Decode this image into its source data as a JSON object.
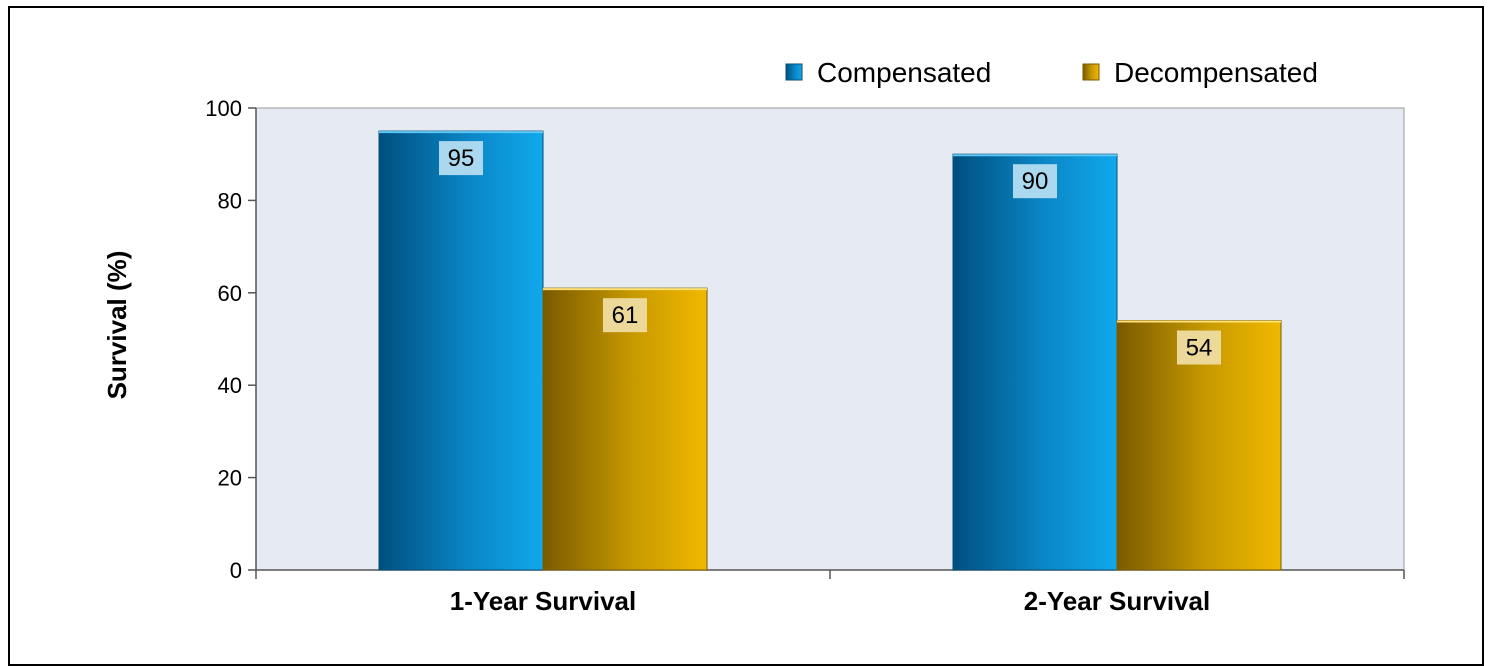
{
  "chart_data": {
    "type": "bar",
    "categories": [
      "1-Year Survival",
      "2-Year Survival"
    ],
    "series": [
      {
        "name": "Compensated",
        "values": [
          95,
          90
        ],
        "color": "#1a8fd0"
      },
      {
        "name": "Decompensated",
        "values": [
          61,
          54
        ],
        "color": "#d4a000"
      }
    ],
    "ylabel": "Survival (%)",
    "xlabel": "",
    "title": "",
    "ylim": [
      0,
      100
    ],
    "yticks": [
      0,
      20,
      40,
      60,
      80,
      100
    ],
    "plot_background": "#e6eaf2",
    "legend_position": "top-right",
    "grid": false
  }
}
